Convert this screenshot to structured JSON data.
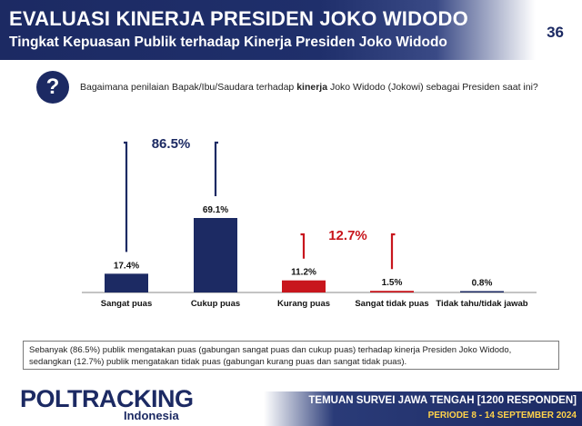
{
  "header": {
    "title": "EVALUASI KINERJA PRESIDEN JOKO WIDODO",
    "subtitle": "Tingkat Kepuasan Publik terhadap Kinerja Presiden Joko Widodo",
    "page_number": "36"
  },
  "question": {
    "icon": "question-icon",
    "text_before": "Bagaimana penilaian Bapak/Ibu/Saudara terhadap ",
    "text_bold": "kinerja",
    "text_after": " Joko Widodo (Jokowi) sebagai Presiden saat ini?"
  },
  "chart_data": {
    "type": "bar",
    "categories": [
      "Sangat puas",
      "Cukup puas",
      "Kurang puas",
      "Sangat tidak puas",
      "Tidak tahu/tidak jawab"
    ],
    "values": [
      17.4,
      69.1,
      11.2,
      1.5,
      0.8
    ],
    "value_labels": [
      "17.4%",
      "69.1%",
      "11.2%",
      "1.5%",
      "0.8%"
    ],
    "colors": [
      "#1c2a63",
      "#1c2a63",
      "#c8161d",
      "#c8161d",
      "#1c2a63"
    ],
    "ylim": [
      0,
      75
    ],
    "annotations": [
      {
        "label": "86.5%",
        "spans": [
          0,
          1
        ],
        "color": "#1c2a63"
      },
      {
        "label": "12.7%",
        "spans": [
          2,
          3
        ],
        "color": "#c8161d"
      }
    ]
  },
  "footnote": "Sebanyak (86.5%) publik mengatakan puas (gabungan sangat puas dan cukup puas) terhadap kinerja Presiden Joko Widodo, sedangkan (12.7%) publik mengatakan tidak puas (gabungan kurang puas dan sangat tidak puas).",
  "footer": {
    "logo_main": "POLTRACKING",
    "logo_sub": "Indonesia",
    "line1": "TEMUAN SURVEI JAWA TENGAH [1200 RESPONDEN]",
    "line2": "PERIODE 8 - 14 SEPTEMBER 2024"
  }
}
